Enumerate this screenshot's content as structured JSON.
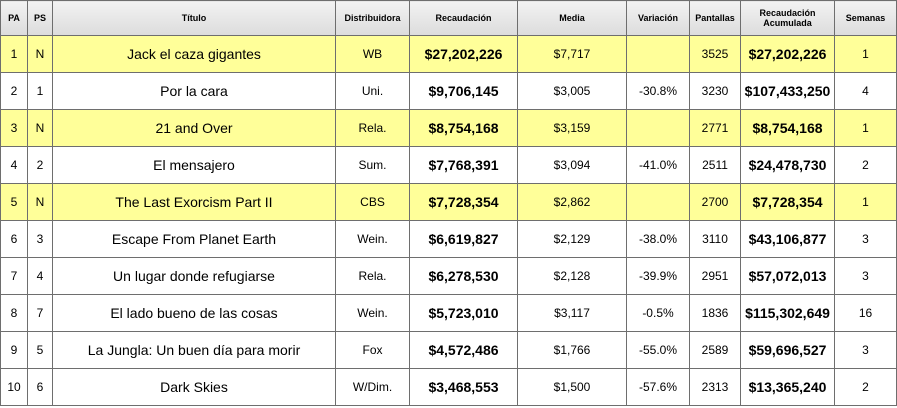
{
  "headers": {
    "pa": "PA",
    "ps": "PS",
    "title": "Título",
    "distributor": "Distribuidora",
    "gross": "Recaudación",
    "average": "Media",
    "change": "Variación",
    "screens": "Pantallas",
    "total_line1": "Recaudación",
    "total_line2": "Acumulada",
    "weeks": "Semanas"
  },
  "highlight_color": "#ffff99",
  "rows": [
    {
      "pa": "1",
      "ps": "N",
      "title": "Jack el caza gigantes",
      "distributor": "WB",
      "gross": "$27,202,226",
      "average": "$7,717",
      "change": "",
      "screens": "3525",
      "total": "$27,202,226",
      "weeks": "1",
      "highlight": true
    },
    {
      "pa": "2",
      "ps": "1",
      "title": "Por la cara",
      "distributor": "Uni.",
      "gross": "$9,706,145",
      "average": "$3,005",
      "change": "-30.8%",
      "screens": "3230",
      "total": "$107,433,250",
      "weeks": "4",
      "highlight": false
    },
    {
      "pa": "3",
      "ps": "N",
      "title": "21 and Over",
      "distributor": "Rela.",
      "gross": "$8,754,168",
      "average": "$3,159",
      "change": "",
      "screens": "2771",
      "total": "$8,754,168",
      "weeks": "1",
      "highlight": true
    },
    {
      "pa": "4",
      "ps": "2",
      "title": "El mensajero",
      "distributor": "Sum.",
      "gross": "$7,768,391",
      "average": "$3,094",
      "change": "-41.0%",
      "screens": "2511",
      "total": "$24,478,730",
      "weeks": "2",
      "highlight": false
    },
    {
      "pa": "5",
      "ps": "N",
      "title": "The Last Exorcism Part II",
      "distributor": "CBS",
      "gross": "$7,728,354",
      "average": "$2,862",
      "change": "",
      "screens": "2700",
      "total": "$7,728,354",
      "weeks": "1",
      "highlight": true
    },
    {
      "pa": "6",
      "ps": "3",
      "title": "Escape From Planet Earth",
      "distributor": "Wein.",
      "gross": "$6,619,827",
      "average": "$2,129",
      "change": "-38.0%",
      "screens": "3110",
      "total": "$43,106,877",
      "weeks": "3",
      "highlight": false
    },
    {
      "pa": "7",
      "ps": "4",
      "title": "Un lugar donde refugiarse",
      "distributor": "Rela.",
      "gross": "$6,278,530",
      "average": "$2,128",
      "change": "-39.9%",
      "screens": "2951",
      "total": "$57,072,013",
      "weeks": "3",
      "highlight": false
    },
    {
      "pa": "8",
      "ps": "7",
      "title": "El lado bueno de las cosas",
      "distributor": "Wein.",
      "gross": "$5,723,010",
      "average": "$3,117",
      "change": "-0.5%",
      "screens": "1836",
      "total": "$115,302,649",
      "weeks": "16",
      "highlight": false
    },
    {
      "pa": "9",
      "ps": "5",
      "title": "La Jungla: Un buen día para morir",
      "distributor": "Fox",
      "gross": "$4,572,486",
      "average": "$1,766",
      "change": "-55.0%",
      "screens": "2589",
      "total": "$59,696,527",
      "weeks": "3",
      "highlight": false
    },
    {
      "pa": "10",
      "ps": "6",
      "title": "Dark Skies",
      "distributor": "W/Dim.",
      "gross": "$3,468,553",
      "average": "$1,500",
      "change": "-57.6%",
      "screens": "2313",
      "total": "$13,365,240",
      "weeks": "2",
      "highlight": false
    }
  ]
}
